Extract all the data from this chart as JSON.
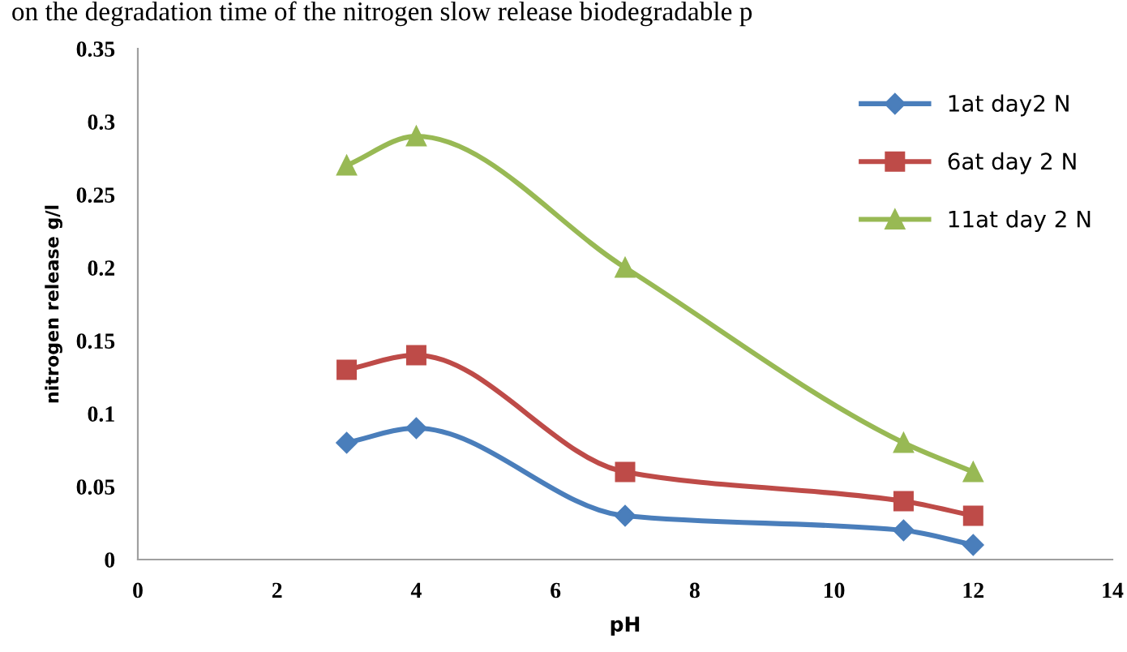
{
  "chart_data": {
    "type": "line",
    "title": "on the degradation time of the nitrogen slow release biodegradable p",
    "xlabel": "pH",
    "ylabel": "nitrogen release g/l",
    "x": [
      3,
      4,
      7,
      11,
      12
    ],
    "series": [
      {
        "name": "1at day2 N",
        "color": "#4a7ebb",
        "marker": "diamond",
        "values": [
          0.08,
          0.09,
          0.03,
          0.02,
          0.01
        ]
      },
      {
        "name": "6at day 2 N",
        "color": "#be4b48",
        "marker": "square",
        "values": [
          0.13,
          0.14,
          0.06,
          0.04,
          0.03
        ]
      },
      {
        "name": "11at day 2 N",
        "color": "#98b954",
        "marker": "triangle",
        "values": [
          0.27,
          0.29,
          0.2,
          0.08,
          0.06
        ]
      }
    ],
    "xlim": [
      0,
      14
    ],
    "xticks": [
      0,
      2,
      4,
      6,
      8,
      10,
      12,
      14
    ],
    "ylim": [
      0,
      0.35
    ],
    "yticks": [
      0,
      0.05,
      0.1,
      0.15,
      0.2,
      0.25,
      0.3,
      0.35
    ],
    "grid": false,
    "legend": "top right",
    "line_style": "solid"
  }
}
